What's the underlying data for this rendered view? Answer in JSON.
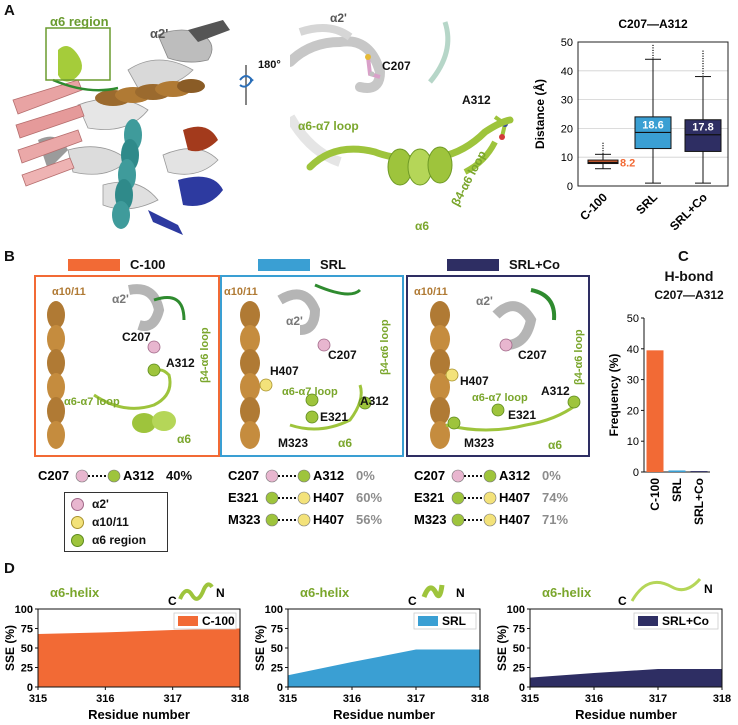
{
  "panels": {
    "a": "A",
    "b": "B",
    "c": "C",
    "d": "D"
  },
  "panel_a": {
    "structure_labels": {
      "a6_region": "α6 region",
      "a2prime": "α2'",
      "rotation": "180°"
    },
    "zoom_labels": {
      "a2prime": "α2'",
      "c207": "C207",
      "a312": "A312",
      "loop_a6a7": "α6-α7 loop",
      "loop_b4a6": "β4-α6 loop",
      "a6": "α6"
    },
    "box_title": "C207—A312"
  },
  "panel_b": {
    "conditions": [
      {
        "name": "C-100",
        "color": "#f26a35"
      },
      {
        "name": "SRL",
        "color": "#3a9fd3"
      },
      {
        "name": "SRL+Co",
        "color": "#2e2e63"
      }
    ],
    "snapshot_labels": {
      "a1011": "α10/11",
      "a2p": "α2'",
      "c207": "C207",
      "a312": "A312",
      "b4a6": "β4-α6 loop",
      "a6a7": "α6-α7 loop",
      "a6": "α6",
      "h407": "H407",
      "e321": "E321",
      "m323": "M323"
    },
    "legend": [
      {
        "label": "α2'",
        "color": "#e8b6cf"
      },
      {
        "label": "α10/11",
        "color": "#f3e27a"
      },
      {
        "label": "α6 region",
        "color": "#9ec43c"
      }
    ],
    "interactions": [
      {
        "left": "C207",
        "right": "A312",
        "values": [
          "40%",
          "0%",
          "0%"
        ]
      },
      {
        "left": "E321",
        "right": "H407",
        "values": [
          "",
          "60%",
          "74%"
        ]
      },
      {
        "left": "M323",
        "right": "H407",
        "values": [
          "",
          "56%",
          "71%"
        ]
      }
    ]
  },
  "panel_c": {
    "title": "H-bond",
    "subtitle": "C207—A312"
  },
  "panel_d": {
    "helix_label": "α6-helix",
    "term_c": "C",
    "term_n": "N"
  },
  "chart_data": [
    {
      "type": "box",
      "title": "C207—A312",
      "ylabel": "Distance (Å)",
      "ylim": [
        0,
        50
      ],
      "yticks": [
        0,
        10,
        20,
        30,
        40,
        50
      ],
      "categories": [
        "C-100",
        "SRL",
        "SRL+Co"
      ],
      "colors": [
        "#f26a35",
        "#3a9fd3",
        "#2e2e63"
      ],
      "boxes": [
        {
          "min": 6,
          "q1": 7.8,
          "median": 8.2,
          "q3": 9,
          "max": 11,
          "outlier_max": 15,
          "label": "8.2"
        },
        {
          "min": 1,
          "q1": 13,
          "median": 18.6,
          "q3": 24,
          "max": 44,
          "outlier_max": 49,
          "label": "18.6"
        },
        {
          "min": 1,
          "q1": 12,
          "median": 17.8,
          "q3": 23,
          "max": 38,
          "outlier_max": 47,
          "label": "17.8"
        }
      ],
      "grid": true
    },
    {
      "type": "bar",
      "title": "H-bond",
      "subtitle": "C207—A312",
      "ylabel": "Frequency (%)",
      "ylim": [
        0,
        50
      ],
      "yticks": [
        0,
        10,
        20,
        30,
        40,
        50
      ],
      "categories": [
        "C-100",
        "SRL",
        "SRL+Co"
      ],
      "values": [
        39.5,
        0.5,
        0.3
      ],
      "colors": [
        "#f26a35",
        "#3a9fd3",
        "#2e2e63"
      ]
    },
    {
      "type": "area",
      "series": [
        {
          "name": "C-100",
          "color": "#f26a35",
          "x": [
            315,
            316,
            317,
            318
          ],
          "y": [
            68,
            70,
            73,
            75
          ]
        }
      ],
      "xlabel": "Residue number",
      "ylabel": "SSE (%)",
      "xlim": [
        315,
        318
      ],
      "ylim": [
        0,
        100
      ],
      "xticks": [
        315,
        316,
        317,
        318
      ],
      "yticks": [
        0,
        25,
        50,
        75,
        100
      ],
      "legend": "top-right"
    },
    {
      "type": "area",
      "series": [
        {
          "name": "SRL",
          "color": "#3a9fd3",
          "x": [
            315,
            316,
            317,
            318
          ],
          "y": [
            15,
            32,
            48,
            48
          ]
        }
      ],
      "xlabel": "Residue number",
      "ylabel": "SSE (%)",
      "xlim": [
        315,
        318
      ],
      "ylim": [
        0,
        100
      ],
      "xticks": [
        315,
        316,
        317,
        318
      ],
      "yticks": [
        0,
        25,
        50,
        75,
        100
      ],
      "legend": "top-right"
    },
    {
      "type": "area",
      "series": [
        {
          "name": "SRL+Co",
          "color": "#2e2e63",
          "x": [
            315,
            316,
            317,
            318
          ],
          "y": [
            12,
            18,
            23,
            23
          ]
        }
      ],
      "xlabel": "Residue number",
      "ylabel": "SSE (%)",
      "xlim": [
        315,
        318
      ],
      "ylim": [
        0,
        100
      ],
      "xticks": [
        315,
        316,
        317,
        318
      ],
      "yticks": [
        0,
        25,
        50,
        75,
        100
      ],
      "legend": "top-right"
    }
  ]
}
